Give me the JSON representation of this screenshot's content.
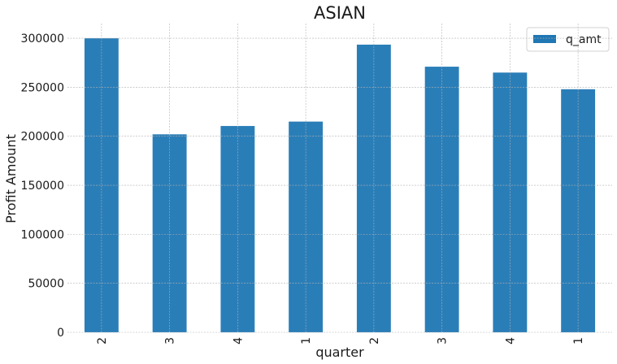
{
  "chart_data": {
    "type": "bar",
    "title": "ASIAN",
    "xlabel": "quarter",
    "ylabel": "Profit Amount",
    "categories": [
      "2",
      "3",
      "4",
      "1",
      "2",
      "3",
      "4",
      "1"
    ],
    "series": [
      {
        "name": "q_amt",
        "values": [
          300000,
          202000,
          210500,
          215000,
          293500,
          271000,
          265000,
          248000
        ],
        "color": "#1f77b4"
      }
    ],
    "ylim": [
      0,
      315000
    ],
    "yticks": [
      0,
      50000,
      100000,
      150000,
      200000,
      250000,
      300000
    ],
    "grid": true,
    "legend": "top-right"
  }
}
